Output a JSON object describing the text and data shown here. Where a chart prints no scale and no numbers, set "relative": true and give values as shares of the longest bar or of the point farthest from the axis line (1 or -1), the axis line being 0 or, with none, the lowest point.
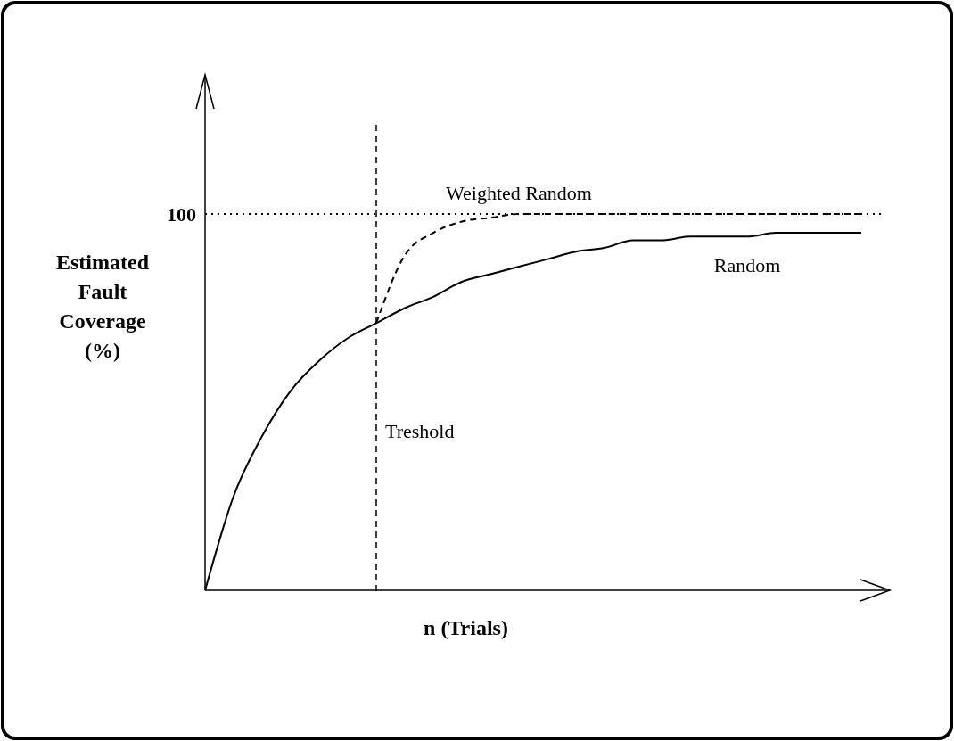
{
  "chart_data": {
    "type": "line",
    "relative": true,
    "xlabel": "n (Trials)",
    "ylabel": "Estimated Fault Coverage (%)",
    "categories": [
      null,
      null,
      null,
      null,
      null,
      null,
      null,
      null,
      null,
      null,
      null,
      null,
      null,
      null,
      null,
      null,
      null,
      null,
      null,
      null,
      null,
      null,
      null,
      null
    ],
    "series": [
      {
        "name": "Weighted Random",
        "color": "#000000",
        "line_style": "dashed",
        "values": [
          null,
          null,
          null,
          null,
          null,
          null,
          0.71,
          0.89,
          0.95,
          0.98,
          0.99,
          1,
          1,
          1,
          1,
          1,
          1,
          1,
          1,
          1,
          1,
          1,
          1,
          1
        ]
      },
      {
        "name": "Random",
        "color": "#000000",
        "line_style": "solid",
        "values": [
          0,
          0.25,
          0.41,
          0.53,
          0.61,
          0.67,
          0.71,
          0.75,
          0.78,
          0.82,
          0.84,
          0.86,
          0.88,
          0.9,
          0.91,
          0.93,
          0.93,
          0.94,
          0.94,
          0.94,
          0.95,
          0.95,
          0.95,
          0.95
        ]
      }
    ],
    "ref_lines": [
      {
        "axis": "y",
        "value": 1,
        "label": "100",
        "line_style": "dotted"
      }
    ],
    "annotations": [
      "Treshold"
    ],
    "grid": false,
    "legend": false,
    "marker": "none"
  }
}
